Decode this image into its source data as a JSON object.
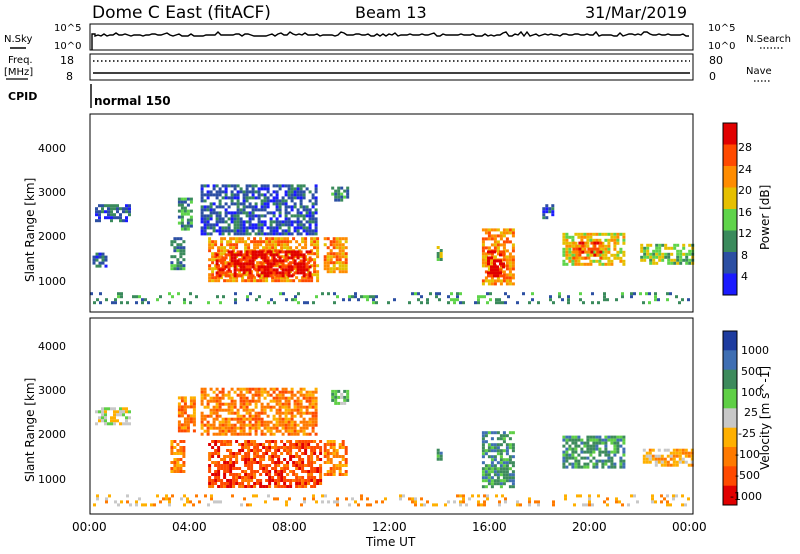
{
  "header": {
    "station": "Dome C East (fitACF)",
    "beam": "Beam 13",
    "date": "31/Mar/2019"
  },
  "status_panels": {
    "nsky_label": "N.Sky",
    "nsky_ticks": [
      "10^5",
      "10^0"
    ],
    "nsearch_label": "N.Search",
    "nsearch_ticks": [
      "10^5",
      "10^0"
    ],
    "freq_label": "Freq.",
    "freq_unit": "[MHz]",
    "freq_ticks": [
      "18",
      "8"
    ],
    "nave_label": "Nave",
    "nave_ticks": [
      "80",
      "0"
    ],
    "cpid_label": "CPID",
    "cpid_value": "normal 150"
  },
  "chart_data": [
    {
      "type": "heatmap",
      "panel": "power",
      "ylabel": "Slant Range [km]",
      "xlabel": "Time UT",
      "xlim": [
        0,
        24
      ],
      "ylim": [
        0,
        4500
      ],
      "x_ticks": [
        "00:00",
        "04:00",
        "08:00",
        "12:00",
        "16:00",
        "20:00",
        "00:00"
      ],
      "y_ticks": [
        "1000",
        "2000",
        "3000",
        "4000"
      ],
      "colorbar_label": "Power [dB]",
      "colorbar_ticks": [
        "4",
        "8",
        "12",
        "16",
        "20",
        "24",
        "28"
      ],
      "colorbar_colors": [
        "#1b1bff",
        "#2c4fa3",
        "#3a8a5c",
        "#5fd44a",
        "#e6c000",
        "#ff8c00",
        "#ff4a00",
        "#e10000"
      ],
      "regions": [
        {
          "t0": 0.2,
          "t1": 1.6,
          "r0": 2050,
          "r1": 2450,
          "level": 1
        },
        {
          "t0": 0.1,
          "t1": 0.6,
          "r0": 1050,
          "r1": 1350,
          "level": 1
        },
        {
          "t0": 3.2,
          "t1": 3.7,
          "r0": 1000,
          "r1": 1700,
          "level": 2
        },
        {
          "t0": 3.5,
          "t1": 4.0,
          "r0": 1900,
          "r1": 2600,
          "level": 2
        },
        {
          "t0": 4.4,
          "t1": 9.0,
          "r0": 1800,
          "r1": 2900,
          "level": 1
        },
        {
          "t0": 4.7,
          "t1": 9.1,
          "r0": 700,
          "r1": 1700,
          "level": 5
        },
        {
          "t0": 5.0,
          "t1": 8.8,
          "r0": 850,
          "r1": 1400,
          "level": 7
        },
        {
          "t0": 9.3,
          "t1": 10.2,
          "r0": 900,
          "r1": 1700,
          "level": 5
        },
        {
          "t0": 9.6,
          "t1": 10.2,
          "r0": 2550,
          "r1": 2850,
          "level": 2
        },
        {
          "t0": 13.8,
          "t1": 13.95,
          "r0": 1200,
          "r1": 1500,
          "level": 3
        },
        {
          "t0": 15.6,
          "t1": 16.8,
          "r0": 650,
          "r1": 1900,
          "level": 5
        },
        {
          "t0": 15.8,
          "t1": 16.5,
          "r0": 800,
          "r1": 1400,
          "level": 7
        },
        {
          "t0": 18.8,
          "t1": 21.2,
          "r0": 1100,
          "r1": 1800,
          "level": 4
        },
        {
          "t0": 19.2,
          "t1": 20.3,
          "r0": 1200,
          "r1": 1600,
          "level": 6
        },
        {
          "t0": 21.9,
          "t1": 24.0,
          "r0": 1100,
          "r1": 1550,
          "level": 3
        },
        {
          "t0": 18.0,
          "t1": 18.4,
          "r0": 2150,
          "r1": 2450,
          "level": 1
        },
        {
          "t0": 0.0,
          "t1": 24.0,
          "r0": 200,
          "r1": 450,
          "level": 2
        }
      ]
    },
    {
      "type": "heatmap",
      "panel": "velocity",
      "ylabel": "Slant Range [km]",
      "xlabel": "Time UT",
      "xlim": [
        0,
        24
      ],
      "ylim": [
        0,
        4500
      ],
      "x_ticks": [
        "00:00",
        "04:00",
        "08:00",
        "12:00",
        "16:00",
        "20:00",
        "00:00"
      ],
      "y_ticks": [
        "1000",
        "2000",
        "3000",
        "4000"
      ],
      "colorbar_label": "Velocity [m s^-1]",
      "colorbar_ticks": [
        "1000",
        "500",
        "100",
        "25",
        "-25",
        "-100",
        "-500",
        "-1000"
      ],
      "colorbar_colors": [
        "#1e3c9f",
        "#3f6fb3",
        "#3d8a5c",
        "#5fcf45",
        "#c8c8c8",
        "#ffb000",
        "#ff7a00",
        "#ff4a00",
        "#e10000"
      ],
      "regions": [
        {
          "t0": 0.2,
          "t1": 1.6,
          "r0": 2050,
          "r1": 2450,
          "level": 4
        },
        {
          "t0": 3.2,
          "t1": 3.7,
          "r0": 1000,
          "r1": 1700,
          "level": 6
        },
        {
          "t0": 3.5,
          "t1": 4.2,
          "r0": 1900,
          "r1": 2700,
          "level": 6
        },
        {
          "t0": 4.4,
          "t1": 9.0,
          "r0": 1800,
          "r1": 2900,
          "level": 6
        },
        {
          "t0": 4.7,
          "t1": 9.2,
          "r0": 600,
          "r1": 1700,
          "level": 7
        },
        {
          "t0": 9.3,
          "t1": 10.2,
          "r0": 900,
          "r1": 1700,
          "level": 6
        },
        {
          "t0": 9.6,
          "t1": 10.2,
          "r0": 2550,
          "r1": 2850,
          "level": 3
        },
        {
          "t0": 13.8,
          "t1": 13.95,
          "r0": 1200,
          "r1": 1500,
          "level": 2
        },
        {
          "t0": 15.6,
          "t1": 16.8,
          "r0": 650,
          "r1": 1900,
          "level": 2
        },
        {
          "t0": 18.8,
          "t1": 21.2,
          "r0": 1100,
          "r1": 1800,
          "level": 2
        },
        {
          "t0": 22.0,
          "t1": 24.0,
          "r0": 1150,
          "r1": 1500,
          "level": 5
        },
        {
          "t0": 0.0,
          "t1": 24.0,
          "r0": 200,
          "r1": 450,
          "level": 5
        }
      ]
    }
  ]
}
